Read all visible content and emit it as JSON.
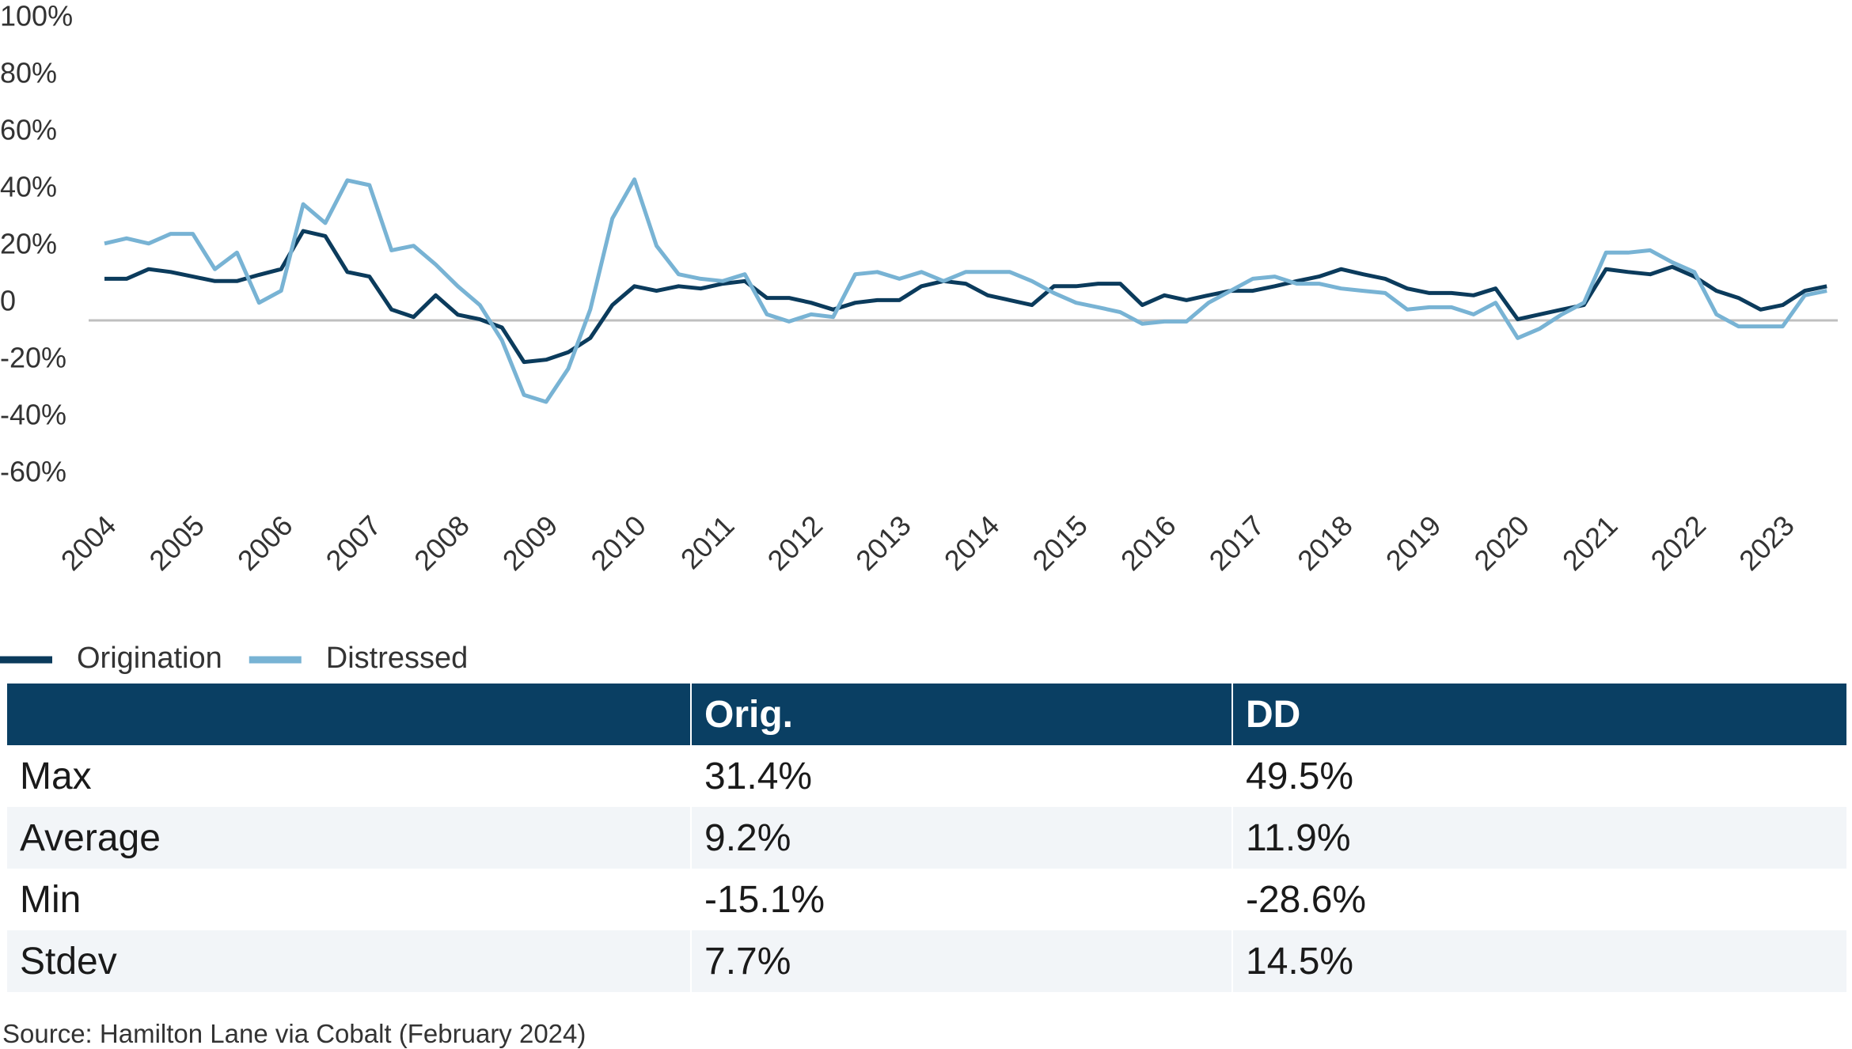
{
  "chart_data": {
    "type": "line",
    "categories": [
      "2004",
      null,
      null,
      null,
      "2005",
      null,
      null,
      null,
      "2006",
      null,
      null,
      null,
      "2007",
      null,
      null,
      null,
      "2008",
      null,
      null,
      null,
      "2009",
      null,
      null,
      null,
      "2010",
      null,
      null,
      null,
      "2011",
      null,
      null,
      null,
      "2012",
      null,
      null,
      null,
      "2013",
      null,
      null,
      null,
      "2014",
      null,
      null,
      null,
      "2015",
      null,
      null,
      null,
      "2016",
      null,
      null,
      null,
      "2017",
      null,
      null,
      null,
      "2018",
      null,
      null,
      null,
      "2019",
      null,
      null,
      null,
      "2020",
      null,
      null,
      null,
      "2021",
      null,
      null,
      null,
      "2022",
      null,
      null,
      null,
      "2023",
      null,
      null
    ],
    "series": [
      {
        "name": "Origination",
        "color": "#0b3b5c",
        "values": [
          14.6,
          14.6,
          18,
          17,
          15.4,
          13.8,
          13.8,
          16,
          18,
          31.4,
          29.6,
          17,
          15.4,
          3.8,
          1.2,
          8.8,
          2,
          0.4,
          -2.5,
          -14.6,
          -13.8,
          -11.2,
          -6.2,
          5.4,
          12,
          10.4,
          12,
          11.2,
          12.9,
          13.8,
          7.9,
          7.9,
          6.2,
          3.8,
          6.2,
          7.1,
          7.1,
          12,
          13.8,
          12.9,
          8.8,
          7.1,
          5.4,
          12,
          12,
          12.9,
          12.9,
          5.4,
          8.8,
          7.1,
          8.8,
          10.4,
          10.4,
          12,
          13.8,
          15.4,
          18,
          16.2,
          14.6,
          11.2,
          9.6,
          9.6,
          8.8,
          11.2,
          0.4,
          2.1,
          3.8,
          5.4,
          18,
          17,
          16.2,
          18.8,
          15.4,
          10.4,
          7.9,
          3.8,
          5.4,
          10.4,
          12
        ]
      },
      {
        "name": "Distressed",
        "color": "#78b3d4",
        "values": [
          27,
          28.8,
          27,
          30.4,
          30.4,
          18,
          23.8,
          6.2,
          10.4,
          40.8,
          34.2,
          49.2,
          47.5,
          24.6,
          26.2,
          19.6,
          12,
          5.4,
          -7,
          -26.2,
          -28.6,
          -17,
          3.8,
          35.8,
          49.5,
          26.2,
          16.2,
          14.6,
          13.8,
          16.2,
          2.1,
          -0.4,
          2.1,
          1.2,
          16.2,
          17,
          14.6,
          17,
          13.8,
          17,
          17,
          17,
          13.8,
          9.6,
          6.2,
          4.6,
          2.9,
          -1.2,
          -0.4,
          -0.4,
          6.2,
          10.4,
          14.6,
          15.4,
          12.9,
          12.9,
          11.2,
          10.4,
          9.6,
          3.8,
          4.6,
          4.6,
          2.1,
          6.2,
          -6.2,
          -2.9,
          2.1,
          6.2,
          23.8,
          23.8,
          24.6,
          20.4,
          17,
          2.1,
          -2.1,
          -2.1,
          -2.1,
          8.8,
          10.4
        ]
      }
    ],
    "ylim": [
      -60,
      100
    ],
    "yticks": [
      {
        "value": 100,
        "label": "100%"
      },
      {
        "value": 80,
        "label": "80%"
      },
      {
        "value": 60,
        "label": "60%"
      },
      {
        "value": 40,
        "label": "40%"
      },
      {
        "value": 20,
        "label": "20%"
      },
      0,
      {
        "value": -20,
        "label": "-20%"
      },
      {
        "value": -40,
        "label": "-40%"
      },
      {
        "value": -60,
        "label": "-60%"
      }
    ],
    "grid": false,
    "zero_line": true,
    "legend": "bottom-left"
  },
  "table": {
    "columns": [
      "Orig.",
      "DD"
    ],
    "rows": [
      [
        "Max",
        "31.4%",
        "49.5%"
      ],
      [
        "Average",
        "9.2%",
        "11.9%"
      ],
      [
        "Min",
        "-15.1%",
        "-28.6%"
      ],
      [
        "Stdev",
        "7.7%",
        "14.5%"
      ]
    ]
  },
  "source": "Source: Hamilton Lane via Cobalt (February 2024)"
}
